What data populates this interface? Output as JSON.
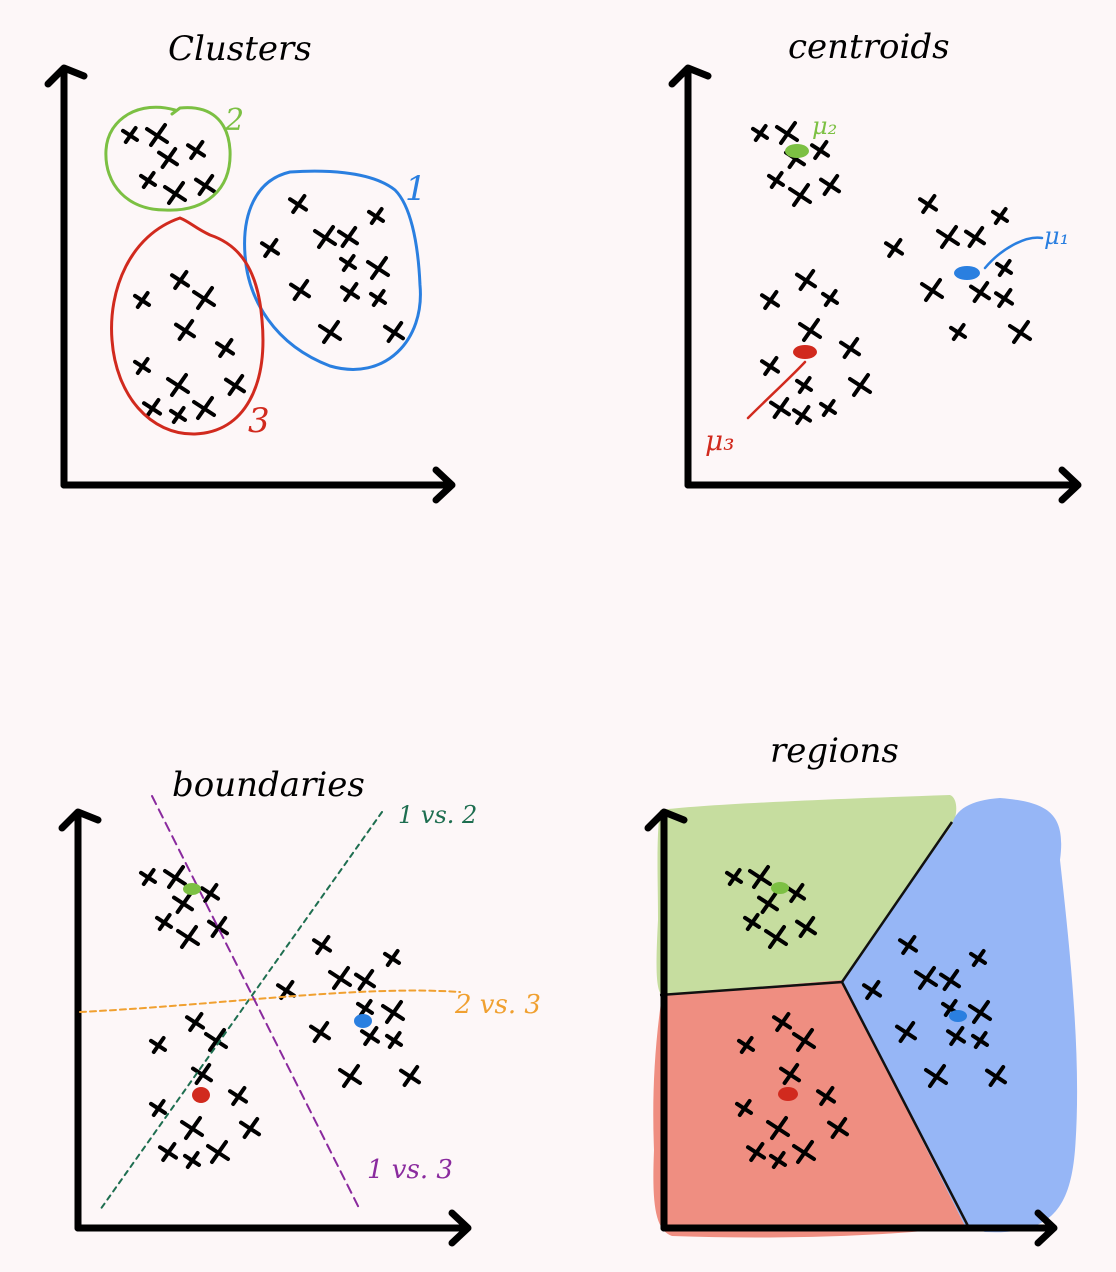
{
  "panels": {
    "clusters": {
      "title": "Clusters",
      "labels": [
        {
          "text": "1",
          "color": "#2a7fe0"
        },
        {
          "text": "2",
          "color": "#7cc043"
        },
        {
          "text": "3",
          "color": "#d12a1e"
        }
      ]
    },
    "centroids": {
      "title": "centroids",
      "labels": [
        {
          "text": "μ₁",
          "color": "#2a7fe0"
        },
        {
          "text": "μ₂",
          "color": "#7cc043"
        },
        {
          "text": "μ₃",
          "color": "#d12a1e"
        }
      ]
    },
    "boundaries": {
      "title": "boundaries",
      "labels": [
        {
          "text": "1 vs. 2",
          "color": "#1e6e50"
        },
        {
          "text": "2 vs. 3",
          "color": "#f0a030"
        },
        {
          "text": "1 vs. 3",
          "color": "#8a2a9e"
        }
      ]
    },
    "regions": {
      "title": "regions",
      "colors": {
        "cluster1": "#96b6f6",
        "cluster2": "#c6dd9f",
        "cluster3": "#ef8e81"
      }
    }
  }
}
